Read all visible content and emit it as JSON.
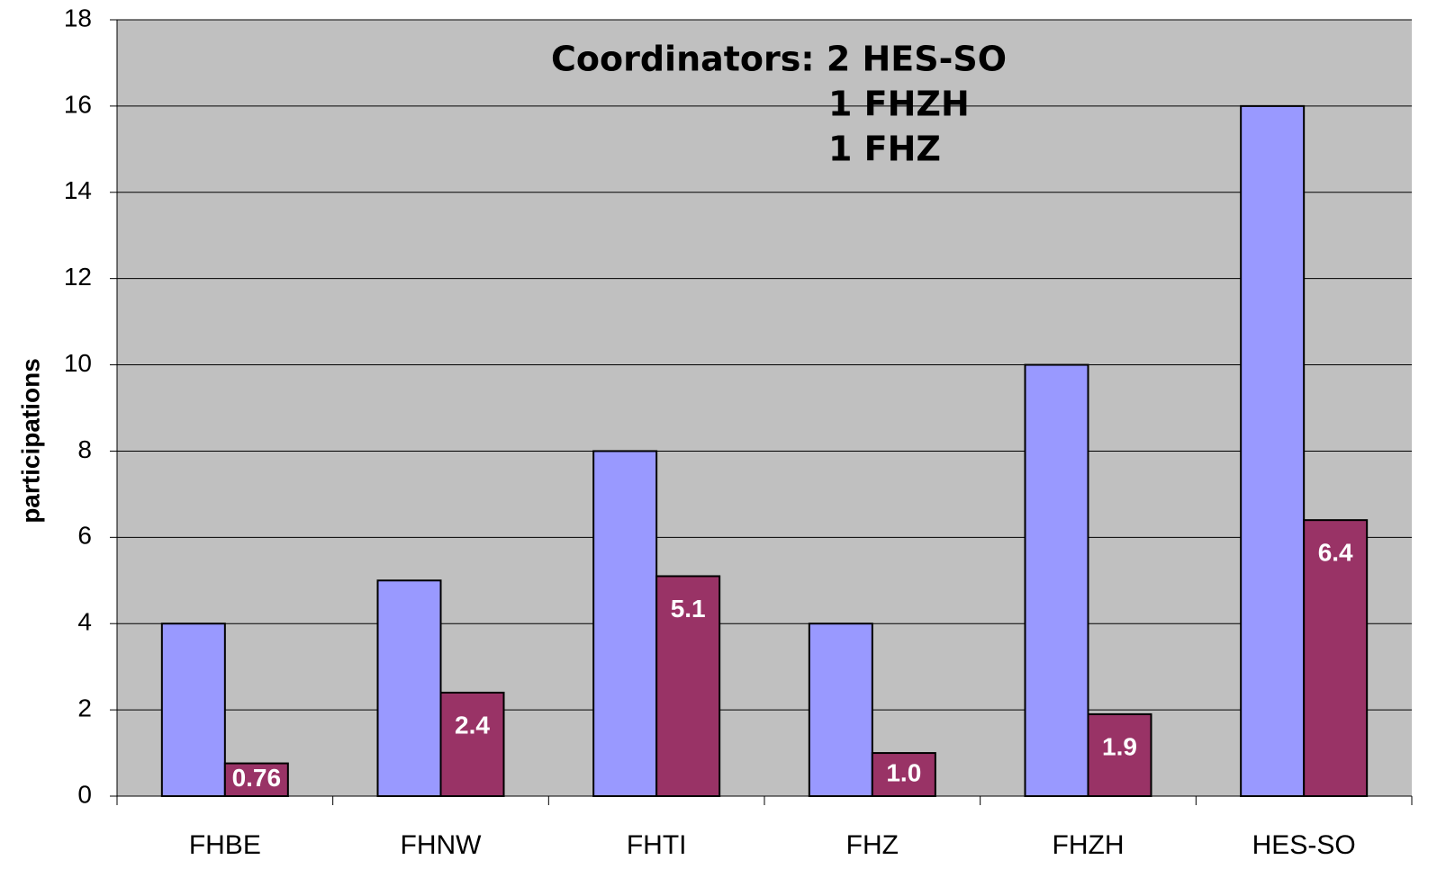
{
  "chart_data": {
    "type": "bar",
    "ylabel": "participations",
    "annotation": [
      "Coordinators: 2 HES-SO",
      "1 FHZH",
      "1 FHZ"
    ],
    "categories": [
      "FHBE",
      "FHNW",
      "FHTI",
      "FHZ",
      "FHZH",
      "HES-SO"
    ],
    "series": [
      {
        "color": "#9999ff",
        "values": [
          4,
          5,
          8,
          4,
          10,
          16
        ]
      },
      {
        "color": "#993366",
        "values": [
          0.76,
          2.4,
          5.1,
          1.0,
          1.9,
          6.4
        ],
        "value_labels": [
          "0.76",
          "2.4",
          "5.1",
          "1.0",
          "1.9",
          "6.4"
        ]
      }
    ],
    "ylim": [
      0,
      18
    ],
    "yticks": [
      0,
      2,
      4,
      6,
      8,
      10,
      12,
      14,
      16,
      18
    ],
    "grid": true,
    "plot_background": "#c0c0c0"
  }
}
